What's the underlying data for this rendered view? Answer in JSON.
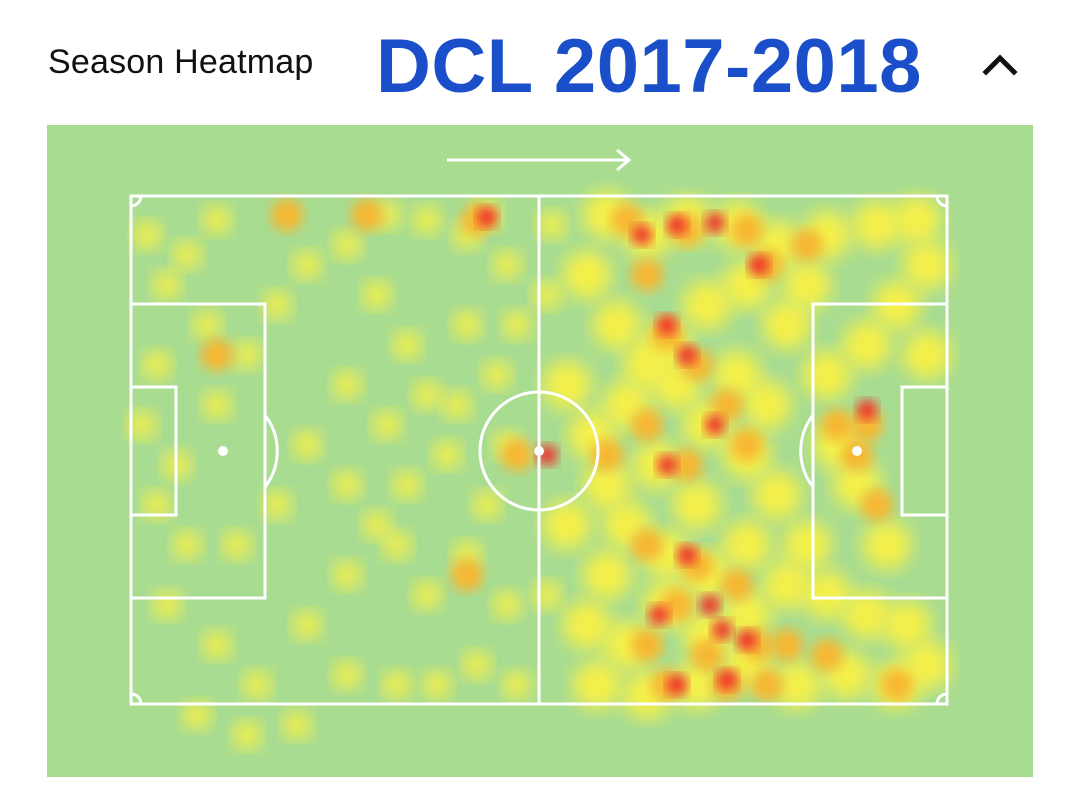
{
  "header": {
    "title": "Season Heatmap",
    "season_label": "DCL 2017-2018",
    "collapse_icon": "chevron-up-icon"
  },
  "heatmap": {
    "attack_direction": "left-to-right",
    "arrow_icon": "arrow-right-icon",
    "colors": {
      "grass": "#a8dc91",
      "lines": "#ffffff",
      "low": "#f5f04a",
      "mid": "#f7b733",
      "high": "#ee2b2b"
    }
  }
}
